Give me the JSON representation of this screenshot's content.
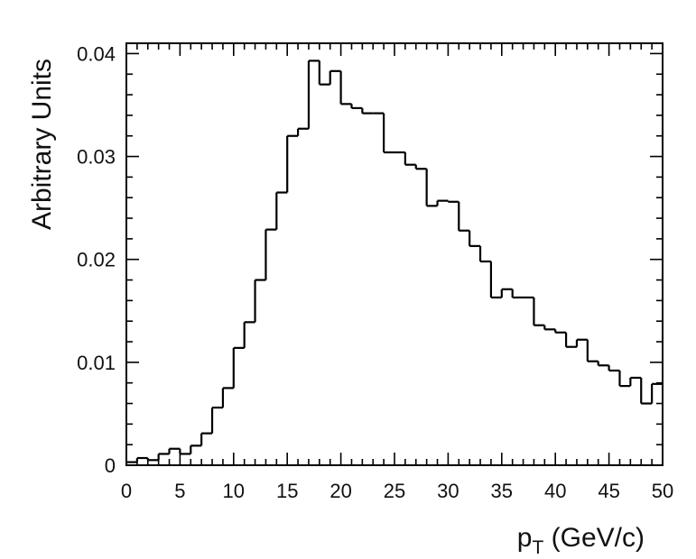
{
  "chart_data": {
    "type": "line",
    "style": "step-histogram",
    "title": "",
    "xlabel": "p",
    "xlabel_subscript": "T",
    "xlabel_unit": " (GeV/c)",
    "ylabel": "Arbitrary Units",
    "xlim": [
      0,
      50
    ],
    "ylim": [
      0,
      0.041
    ],
    "grid": false,
    "x_ticks": [
      0,
      5,
      10,
      15,
      20,
      25,
      30,
      35,
      40,
      45,
      50
    ],
    "x_tick_labels": [
      "0",
      "5",
      "10",
      "15",
      "20",
      "25",
      "30",
      "35",
      "40",
      "45",
      "50"
    ],
    "y_ticks": [
      0,
      0.01,
      0.02,
      0.03,
      0.04
    ],
    "y_tick_labels": [
      "0",
      "0.01",
      "0.02",
      "0.03",
      "0.04"
    ],
    "bin_width": 1,
    "x": [
      0.5,
      1.5,
      2.5,
      3.5,
      4.5,
      5.5,
      6.5,
      7.5,
      8.5,
      9.5,
      10.5,
      11.5,
      12.5,
      13.5,
      14.5,
      15.5,
      16.5,
      17.5,
      18.5,
      19.5,
      20.5,
      21.5,
      22.5,
      23.5,
      24.5,
      25.5,
      26.5,
      27.5,
      28.5,
      29.5,
      30.5,
      31.5,
      32.5,
      33.5,
      34.5,
      35.5,
      36.5,
      37.5,
      38.5,
      39.5,
      40.5,
      41.5,
      42.5,
      43.5,
      44.5,
      45.5,
      46.5,
      47.5,
      48.5,
      49.5
    ],
    "values": [
      0.0003,
      0.0007,
      0.0005,
      0.0011,
      0.0016,
      0.0011,
      0.0019,
      0.0031,
      0.0056,
      0.0075,
      0.0114,
      0.0139,
      0.018,
      0.0229,
      0.0265,
      0.032,
      0.0327,
      0.0393,
      0.037,
      0.0383,
      0.0351,
      0.0347,
      0.0342,
      0.0342,
      0.0304,
      0.0304,
      0.0292,
      0.0288,
      0.0252,
      0.0257,
      0.0256,
      0.0228,
      0.0213,
      0.0198,
      0.0163,
      0.0171,
      0.0163,
      0.0163,
      0.0136,
      0.0132,
      0.0129,
      0.0115,
      0.0122,
      0.0101,
      0.0097,
      0.0092,
      0.0077,
      0.0085,
      0.006,
      0.0079
    ]
  }
}
